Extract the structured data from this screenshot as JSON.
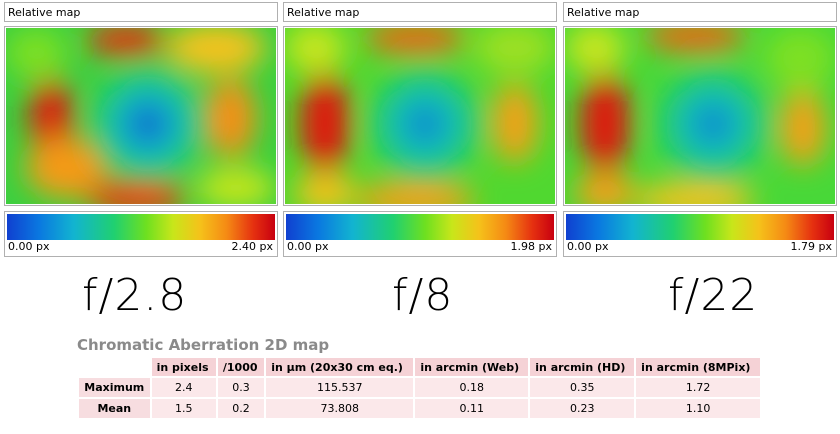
{
  "panels": [
    {
      "title": "Relative map",
      "scale_min": "0.00 px",
      "scale_max": "2.40 px",
      "aperture": "f/2.8"
    },
    {
      "title": "Relative map",
      "scale_min": "0.00 px",
      "scale_max": "1.98 px",
      "aperture": "f/8"
    },
    {
      "title": "Relative map",
      "scale_min": "0.00 px",
      "scale_max": "1.79 px",
      "aperture": "f/22"
    }
  ],
  "table": {
    "title": "Chromatic Aberration 2D map",
    "headers": [
      "",
      "in pixels",
      "/1000",
      "in µm (20x30 cm eq.)",
      "in arcmin (Web)",
      "in arcmin (HD)",
      "in arcmin (8MPix)"
    ],
    "rows": [
      {
        "label": "Maximum",
        "values": [
          "2.4",
          "0.3",
          "115.537",
          "0.18",
          "0.35",
          "1.72"
        ]
      },
      {
        "label": "Mean",
        "values": [
          "1.5",
          "0.2",
          "73.808",
          "0.11",
          "0.23",
          "1.10"
        ]
      }
    ]
  },
  "chart_data": [
    {
      "type": "heatmap",
      "title": "Relative map",
      "scale_range": [
        0.0,
        2.4
      ],
      "unit": "px",
      "label": "f/2.8"
    },
    {
      "type": "heatmap",
      "title": "Relative map",
      "scale_range": [
        0.0,
        1.98
      ],
      "unit": "px",
      "label": "f/8"
    },
    {
      "type": "heatmap",
      "title": "Relative map",
      "scale_range": [
        0.0,
        1.79
      ],
      "unit": "px",
      "label": "f/22"
    }
  ],
  "colors": {
    "header_bg": "#f5d2d6",
    "cell_bg": "#fbe8ea",
    "title_gray": "#8a8a8a"
  }
}
